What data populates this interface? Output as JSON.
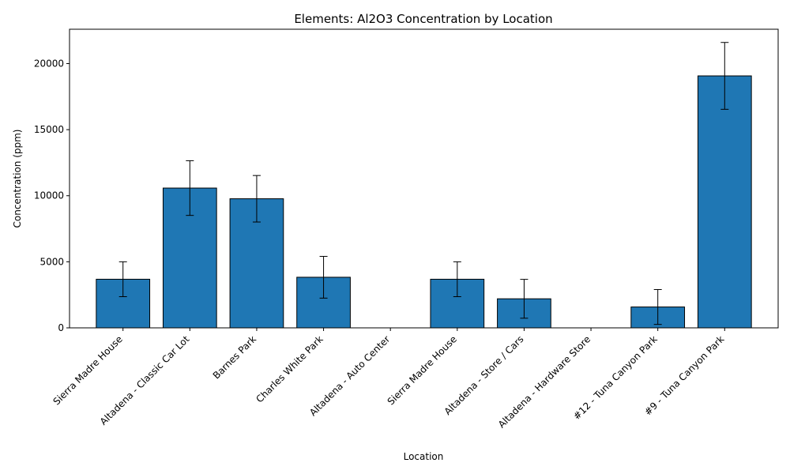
{
  "chart_data": {
    "type": "bar",
    "title": "Elements: Al2O3 Concentration by Location",
    "xlabel": "Location",
    "ylabel": "Concentration (ppm)",
    "ylim": [
      0,
      22600
    ],
    "yticks": [
      0,
      5000,
      10000,
      15000,
      20000
    ],
    "grid": false,
    "bar_color": "#1f77b4",
    "edge_color": "#000000",
    "categories": [
      "Sierra Madre House",
      "Altadena - Classic Car Lot",
      "Barnes Park",
      "Charles White Park",
      "Altadena - Auto Center",
      "Sierra Madre House",
      "Altadena - Store / Cars",
      "Altadena - Hardware Store",
      "#12 - Tuna Canyon Park",
      "#9 - Tuna Canyon Park"
    ],
    "values": [
      3680,
      10580,
      9770,
      3830,
      null,
      3680,
      2200,
      null,
      1580,
      19070
    ],
    "errors": [
      1320,
      2070,
      1760,
      1580,
      null,
      1320,
      1470,
      null,
      1320,
      2530
    ]
  }
}
